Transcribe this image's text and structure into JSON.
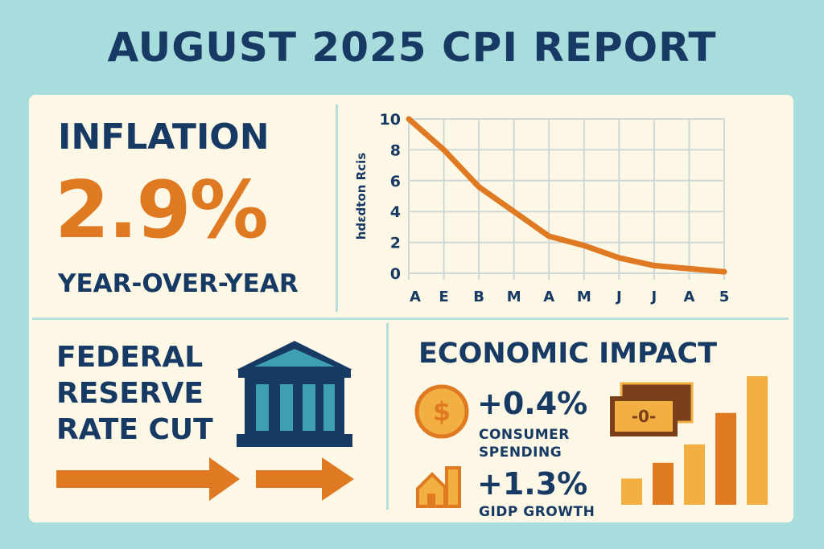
{
  "title": "AUGUST 2025 CPI REPORT",
  "inflation": {
    "label": "INFLATION",
    "value": "2.9%",
    "period": "YEAR-OVER-YEAR"
  },
  "fed": {
    "lines": [
      "FEDERAL",
      "RESERVE",
      "RATE CUT"
    ]
  },
  "impact": {
    "title": "ECONOMIC IMPACT",
    "consumer": {
      "value": "+0.4%",
      "label_lines": [
        "CONSUMER",
        "SPENDING"
      ]
    },
    "gdp": {
      "value": "+1.3%",
      "label": "GIDP GROWTH"
    },
    "bill_glyph": "-0-"
  },
  "colors": {
    "navy": "#163a64",
    "orange": "#e07a22",
    "yellow": "#f2b042",
    "bg": "#a9dcdc",
    "panel": "#fdf7e6"
  },
  "chart_data": {
    "type": "line",
    "ylabel": "hdɛdton Rcis",
    "categories": [
      "A",
      "E",
      "B",
      "M",
      "A",
      "M",
      "J",
      "J",
      "A",
      "5"
    ],
    "values": [
      10,
      8,
      5.6,
      4,
      2.4,
      1.8,
      1.0,
      0.5,
      0.3,
      0.1
    ],
    "yticks": [
      "0",
      "2",
      "4",
      "6",
      "8",
      "10"
    ],
    "ylim": [
      0,
      10
    ],
    "grid": true
  },
  "bar_chart": {
    "type": "bar",
    "values": [
      1,
      1.6,
      2.3,
      3.5,
      4.9
    ]
  }
}
